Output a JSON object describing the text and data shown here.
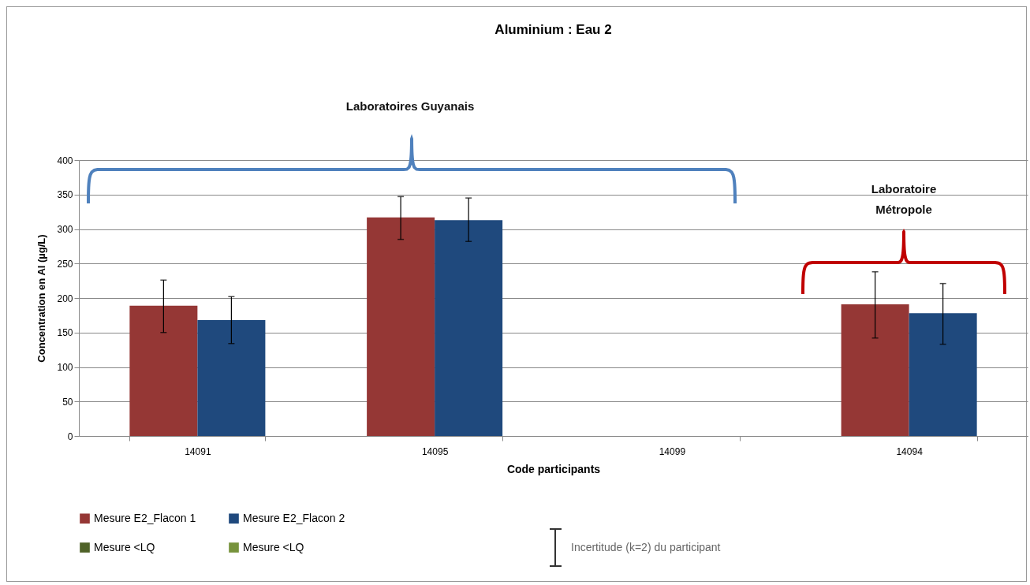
{
  "chart_data": {
    "type": "bar",
    "title": "Aluminium : Eau 2",
    "xlabel": "Code participants",
    "ylabel": "Concentration en Al (µg/L)",
    "categories": [
      "14091",
      "14095",
      "14099",
      "14094"
    ],
    "series": [
      {
        "name": "Mesure E2_Flacon 1",
        "color": "#953735",
        "values": [
          189,
          317,
          null,
          191
        ],
        "errors": [
          [
            150,
            226
          ],
          [
            285,
            347
          ],
          null,
          [
            142,
            238
          ]
        ]
      },
      {
        "name": "Mesure E2_Flacon 2",
        "color": "#1f497d",
        "values": [
          168,
          313,
          null,
          178
        ],
        "errors": [
          [
            134,
            202
          ],
          [
            282,
            345
          ],
          null,
          [
            133,
            221
          ]
        ]
      },
      {
        "name": "Mesure <LQ",
        "color": "#4f6228",
        "values": [
          null,
          null,
          null,
          null
        ]
      },
      {
        "name": "Mesure <LQ",
        "color": "#77933c",
        "values": [
          null,
          null,
          null,
          null
        ]
      }
    ],
    "ylim": [
      0,
      400
    ],
    "yticks": [
      0,
      50,
      100,
      150,
      200,
      250,
      300,
      350,
      400
    ],
    "grid": "y",
    "legend": "bottom",
    "annotations": [
      "Laboratoires  Guyanais",
      "Laboratoire Métropole",
      "Incertitude (k=2) du participant"
    ]
  }
}
